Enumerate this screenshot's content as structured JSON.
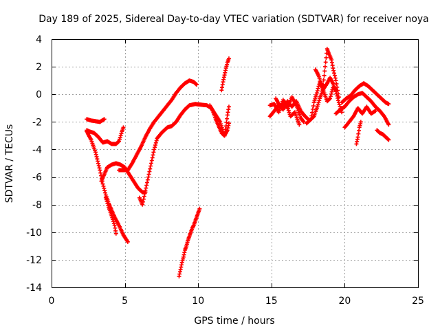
{
  "chart_data": {
    "type": "scatter",
    "title": "Day 189 of 2025, Sidereal Day-to-day VTEC variation (SDTVAR) for receiver noya",
    "xlabel": "GPS time / hours",
    "ylabel": "SDTVAR / TECUs",
    "xlim": [
      0,
      25
    ],
    "ylim": [
      -14,
      4
    ],
    "xticks": [
      "0",
      "5",
      "10",
      "15",
      "20",
      "25"
    ],
    "xtick_values": [
      0,
      5,
      10,
      15,
      20,
      25
    ],
    "yticks": [
      "-14",
      "-12",
      "-10",
      "-8",
      "-6",
      "-4",
      "-2",
      "0",
      "2",
      "4"
    ],
    "ytick_values": [
      -14,
      -12,
      -10,
      -8,
      -6,
      -4,
      -2,
      0,
      2,
      4
    ],
    "grid": true,
    "marker": "plus",
    "color": "#ff0000",
    "series": [
      {
        "name": "trace-1",
        "points": [
          [
            2.4,
            -1.8
          ],
          [
            2.7,
            -1.9
          ],
          [
            3.0,
            -1.95
          ],
          [
            3.3,
            -2.0
          ],
          [
            3.6,
            -1.8
          ]
        ]
      },
      {
        "name": "trace-2",
        "points": [
          [
            2.4,
            -2.6
          ],
          [
            2.6,
            -2.7
          ],
          [
            2.9,
            -2.8
          ],
          [
            3.2,
            -3.1
          ],
          [
            3.5,
            -3.5
          ],
          [
            3.8,
            -3.4
          ],
          [
            4.1,
            -3.6
          ],
          [
            4.4,
            -3.6
          ],
          [
            4.6,
            -3.4
          ],
          [
            4.8,
            -2.7
          ],
          [
            4.9,
            -2.4
          ]
        ]
      },
      {
        "name": "trace-3",
        "points": [
          [
            2.4,
            -2.7
          ],
          [
            2.7,
            -3.3
          ],
          [
            3.0,
            -4.2
          ],
          [
            3.3,
            -5.5
          ],
          [
            3.5,
            -6.5
          ],
          [
            3.7,
            -7.3
          ],
          [
            3.9,
            -7.9
          ],
          [
            4.1,
            -8.4
          ],
          [
            4.3,
            -8.9
          ],
          [
            4.6,
            -9.5
          ],
          [
            4.9,
            -10.2
          ],
          [
            5.2,
            -10.7
          ]
        ]
      },
      {
        "name": "trace-4",
        "points": [
          [
            3.4,
            -6.3
          ],
          [
            3.6,
            -5.8
          ],
          [
            3.8,
            -5.3
          ],
          [
            4.1,
            -5.1
          ],
          [
            4.4,
            -5.0
          ],
          [
            4.7,
            -5.1
          ],
          [
            5.0,
            -5.3
          ],
          [
            5.3,
            -5.8
          ],
          [
            5.6,
            -6.3
          ],
          [
            5.9,
            -6.8
          ],
          [
            6.2,
            -7.1
          ],
          [
            6.4,
            -7.1
          ]
        ]
      },
      {
        "name": "trace-5",
        "points": [
          [
            3.7,
            -7.5
          ],
          [
            3.9,
            -8.2
          ],
          [
            4.1,
            -8.8
          ],
          [
            4.3,
            -9.5
          ],
          [
            4.4,
            -10.1
          ]
        ]
      },
      {
        "name": "trace-6",
        "points": [
          [
            4.6,
            -5.5
          ],
          [
            4.9,
            -5.5
          ],
          [
            5.2,
            -5.5
          ],
          [
            5.5,
            -5.0
          ],
          [
            5.8,
            -4.4
          ],
          [
            6.1,
            -3.8
          ],
          [
            6.4,
            -3.1
          ],
          [
            6.7,
            -2.5
          ],
          [
            7.0,
            -2.0
          ],
          [
            7.3,
            -1.6
          ],
          [
            7.6,
            -1.2
          ],
          [
            7.9,
            -0.8
          ],
          [
            8.2,
            -0.4
          ],
          [
            8.5,
            0.1
          ],
          [
            8.8,
            0.5
          ],
          [
            9.1,
            0.8
          ],
          [
            9.4,
            1.0
          ],
          [
            9.7,
            0.9
          ],
          [
            9.9,
            0.7
          ]
        ]
      },
      {
        "name": "trace-7",
        "points": [
          [
            6.0,
            -7.5
          ],
          [
            6.2,
            -8.0
          ],
          [
            6.4,
            -7.0
          ],
          [
            6.6,
            -6.0
          ],
          [
            6.8,
            -5.0
          ],
          [
            7.0,
            -4.0
          ],
          [
            7.2,
            -3.2
          ],
          [
            7.5,
            -2.8
          ],
          [
            7.9,
            -2.4
          ],
          [
            8.2,
            -2.3
          ],
          [
            8.5,
            -2.0
          ],
          [
            8.8,
            -1.5
          ],
          [
            9.1,
            -1.1
          ],
          [
            9.4,
            -0.8
          ],
          [
            9.8,
            -0.7
          ],
          [
            10.2,
            -0.75
          ],
          [
            10.6,
            -0.8
          ],
          [
            10.9,
            -1.0
          ],
          [
            11.2,
            -1.5
          ],
          [
            11.5,
            -2.0
          ],
          [
            11.7,
            -2.7
          ],
          [
            11.8,
            -3.0
          ],
          [
            12.0,
            -2.6
          ],
          [
            12.1,
            -2.1
          ]
        ]
      },
      {
        "name": "trace-8",
        "points": [
          [
            8.7,
            -13.2
          ],
          [
            8.8,
            -12.7
          ],
          [
            8.9,
            -12.2
          ],
          [
            9.0,
            -11.8
          ],
          [
            9.1,
            -11.3
          ],
          [
            9.2,
            -11.0
          ],
          [
            9.3,
            -10.6
          ],
          [
            9.4,
            -10.3
          ],
          [
            9.5,
            -10.0
          ],
          [
            9.6,
            -9.7
          ],
          [
            9.7,
            -9.5
          ],
          [
            9.8,
            -9.2
          ],
          [
            9.9,
            -8.9
          ],
          [
            10.0,
            -8.6
          ],
          [
            10.1,
            -8.3
          ]
        ]
      },
      {
        "name": "trace-9",
        "points": [
          [
            10.8,
            -0.8
          ],
          [
            11.0,
            -1.2
          ],
          [
            11.2,
            -1.8
          ],
          [
            11.4,
            -2.3
          ],
          [
            11.6,
            -2.8
          ],
          [
            11.8,
            -3.0
          ],
          [
            11.9,
            -2.3
          ],
          [
            12.0,
            -1.5
          ],
          [
            12.1,
            -0.9
          ]
        ]
      },
      {
        "name": "trace-10",
        "points": [
          [
            11.6,
            0.3
          ],
          [
            11.7,
            0.9
          ],
          [
            11.8,
            1.4
          ],
          [
            11.9,
            1.9
          ],
          [
            12.0,
            2.3
          ],
          [
            12.1,
            2.6
          ]
        ]
      },
      {
        "name": "trace-11",
        "points": [
          [
            14.9,
            -1.6
          ],
          [
            15.2,
            -1.2
          ],
          [
            15.5,
            -0.8
          ],
          [
            15.8,
            -1.1
          ],
          [
            16.1,
            -0.5
          ],
          [
            16.4,
            -0.9
          ],
          [
            16.7,
            -0.5
          ],
          [
            17.0,
            -1.2
          ],
          [
            17.3,
            -1.6
          ],
          [
            17.6,
            -1.9
          ],
          [
            17.9,
            -1.6
          ],
          [
            18.1,
            -1.0
          ],
          [
            18.3,
            -0.3
          ],
          [
            18.5,
            0.3
          ],
          [
            18.8,
            0.8
          ],
          [
            19.0,
            1.2
          ],
          [
            19.2,
            0.8
          ],
          [
            19.4,
            0.2
          ],
          [
            19.6,
            -0.6
          ],
          [
            19.8,
            -1.3
          ]
        ]
      },
      {
        "name": "trace-12",
        "points": [
          [
            14.9,
            -0.8
          ],
          [
            15.2,
            -0.7
          ],
          [
            15.5,
            -1.3
          ],
          [
            15.8,
            -0.4
          ],
          [
            16.1,
            -1.0
          ],
          [
            16.4,
            -0.2
          ],
          [
            16.7,
            -0.8
          ],
          [
            17.0,
            -1.7
          ],
          [
            17.2,
            -2.0
          ]
        ]
      },
      {
        "name": "trace-13",
        "points": [
          [
            15.3,
            -0.3
          ],
          [
            15.6,
            -0.9
          ],
          [
            16.0,
            -0.6
          ],
          [
            16.3,
            -1.6
          ],
          [
            16.6,
            -1.3
          ],
          [
            16.9,
            -2.2
          ]
        ]
      },
      {
        "name": "trace-14",
        "points": [
          [
            17.4,
            -2.1
          ],
          [
            17.7,
            -1.8
          ],
          [
            17.9,
            -0.6
          ],
          [
            18.1,
            0.1
          ],
          [
            18.3,
            0.9
          ],
          [
            18.5,
            0.4
          ],
          [
            18.8,
            3.3
          ],
          [
            18.9,
            3.0
          ],
          [
            19.1,
            2.5
          ],
          [
            19.2,
            1.9
          ],
          [
            19.4,
            1.0
          ],
          [
            19.6,
            -0.2
          ]
        ]
      },
      {
        "name": "trace-15",
        "points": [
          [
            18.0,
            1.8
          ],
          [
            18.2,
            1.4
          ],
          [
            18.4,
            0.8
          ],
          [
            18.6,
            0.1
          ],
          [
            18.8,
            -0.5
          ],
          [
            19.0,
            -0.3
          ],
          [
            19.2,
            0.5
          ],
          [
            19.4,
            0.3
          ]
        ]
      },
      {
        "name": "trace-16",
        "points": [
          [
            19.8,
            -0.6
          ],
          [
            20.1,
            -0.3
          ],
          [
            20.4,
            -0.1
          ],
          [
            20.7,
            0.3
          ],
          [
            21.0,
            0.6
          ],
          [
            21.3,
            0.8
          ],
          [
            21.6,
            0.6
          ],
          [
            21.9,
            0.3
          ],
          [
            22.2,
            0.0
          ],
          [
            22.5,
            -0.3
          ],
          [
            22.8,
            -0.6
          ],
          [
            23.0,
            -0.7
          ]
        ]
      },
      {
        "name": "trace-17",
        "points": [
          [
            19.4,
            -1.4
          ],
          [
            19.7,
            -1.1
          ],
          [
            20.0,
            -0.9
          ],
          [
            20.3,
            -0.5
          ],
          [
            20.6,
            -0.2
          ],
          [
            20.9,
            0.0
          ],
          [
            21.2,
            0.1
          ],
          [
            21.5,
            -0.2
          ],
          [
            21.8,
            -0.5
          ],
          [
            22.1,
            -0.9
          ],
          [
            22.4,
            -1.2
          ],
          [
            22.7,
            -1.6
          ],
          [
            23.0,
            -2.2
          ]
        ]
      },
      {
        "name": "trace-18",
        "points": [
          [
            20.0,
            -2.4
          ],
          [
            20.3,
            -2.0
          ],
          [
            20.6,
            -1.6
          ],
          [
            20.9,
            -1.0
          ],
          [
            21.2,
            -1.4
          ],
          [
            21.5,
            -0.9
          ],
          [
            21.8,
            -1.4
          ],
          [
            22.1,
            -1.2
          ]
        ]
      },
      {
        "name": "trace-19",
        "points": [
          [
            20.8,
            -3.6
          ],
          [
            20.9,
            -3.1
          ],
          [
            21.0,
            -2.4
          ],
          [
            21.1,
            -2.0
          ]
        ]
      },
      {
        "name": "trace-20",
        "points": [
          [
            22.2,
            -2.6
          ],
          [
            22.4,
            -2.8
          ],
          [
            22.6,
            -2.9
          ],
          [
            22.8,
            -3.1
          ],
          [
            23.0,
            -3.3
          ]
        ]
      }
    ]
  }
}
